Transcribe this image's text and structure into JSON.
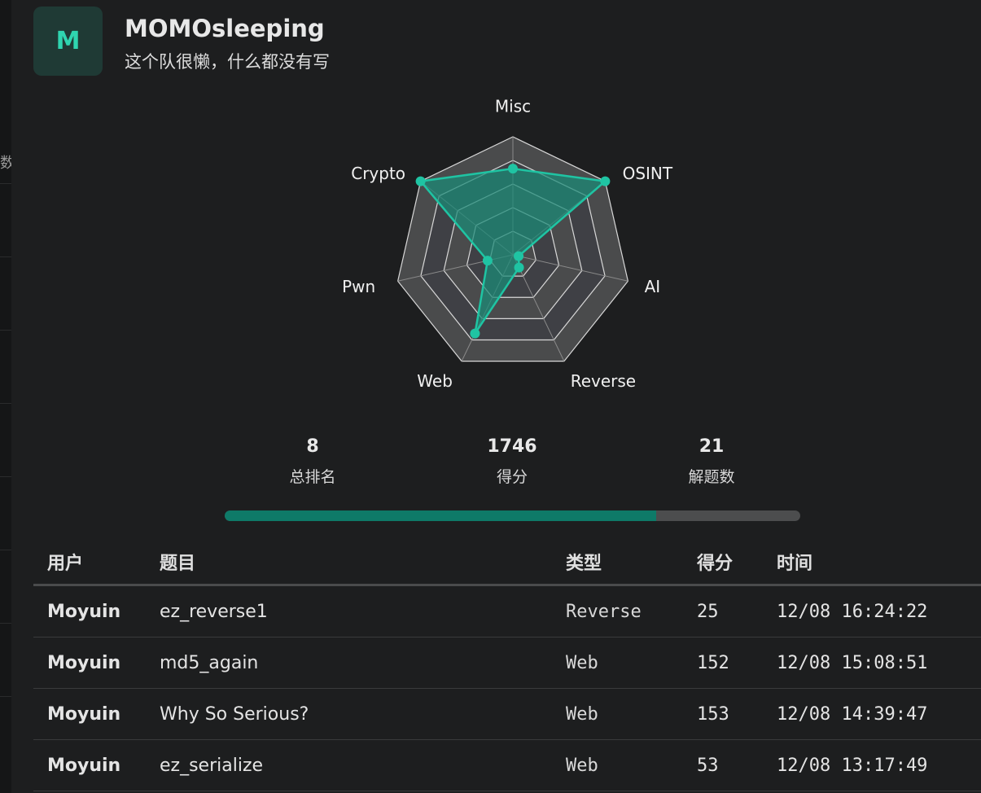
{
  "left_fragment": "数",
  "team": {
    "avatar_letter": "M",
    "name": "MOMOsleeping",
    "description": "这个队很懒，什么都没有写"
  },
  "radar": {
    "categories": [
      "Misc",
      "OSINT",
      "AI",
      "Reverse",
      "Web",
      "Pwn",
      "Crypto"
    ],
    "values": [
      0.73,
      1.0,
      0.05,
      0.12,
      0.74,
      0.22,
      1.0
    ],
    "max": 1,
    "accent": "#1fc4a3",
    "fill": "#1a8a77"
  },
  "stats": [
    {
      "value": "8",
      "label": "总排名"
    },
    {
      "value": "1746",
      "label": "得分"
    },
    {
      "value": "21",
      "label": "解题数"
    }
  ],
  "progress": {
    "fraction": 0.75
  },
  "table": {
    "headers": {
      "user": "用户",
      "title": "题目",
      "type": "类型",
      "score": "得分",
      "time": "时间"
    },
    "rows": [
      {
        "user": "Moyuin",
        "title": "ez_reverse1",
        "type": "Reverse",
        "score": "25",
        "time": "12/08 16:24:22"
      },
      {
        "user": "Moyuin",
        "title": "md5_again",
        "type": "Web",
        "score": "152",
        "time": "12/08 15:08:51"
      },
      {
        "user": "Moyuin",
        "title": "Why So Serious?",
        "type": "Web",
        "score": "153",
        "time": "12/08 14:39:47"
      },
      {
        "user": "Moyuin",
        "title": "ez_serialize",
        "type": "Web",
        "score": "53",
        "time": "12/08 13:17:49"
      }
    ]
  }
}
